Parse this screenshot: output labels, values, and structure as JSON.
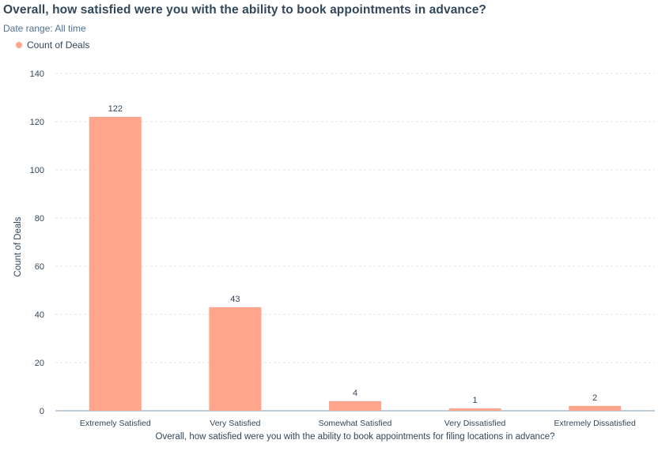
{
  "header": {
    "title": "Overall, how satisfied were you with the ability to book appointments in advance?",
    "date_range": "Date range: All time"
  },
  "colors": {
    "bar": "#ffa58c",
    "grid": "#dfe3eb",
    "axis": "#7c98b6",
    "text": "#33475b"
  },
  "chart_data": {
    "type": "bar",
    "categories": [
      "Extremely Satisfied",
      "Very Satisfied",
      "Somewhat Satisfied",
      "Very Dissatisfied",
      "Extremely Dissatisfied"
    ],
    "series": [
      {
        "name": "Count of Deals",
        "values": [
          122,
          43,
          4,
          1,
          2
        ]
      }
    ],
    "data_labels": [
      "122",
      "43",
      "4",
      "1",
      "2"
    ],
    "xlabel": "Overall, how satisfied were you with the ability to book appointments for filing locations in advance?",
    "ylabel": "Count of Deals",
    "ylim": [
      0,
      140
    ],
    "yticks": [
      0,
      20,
      40,
      60,
      80,
      100,
      120,
      140
    ],
    "grid": true,
    "legend_position": "top-left"
  }
}
